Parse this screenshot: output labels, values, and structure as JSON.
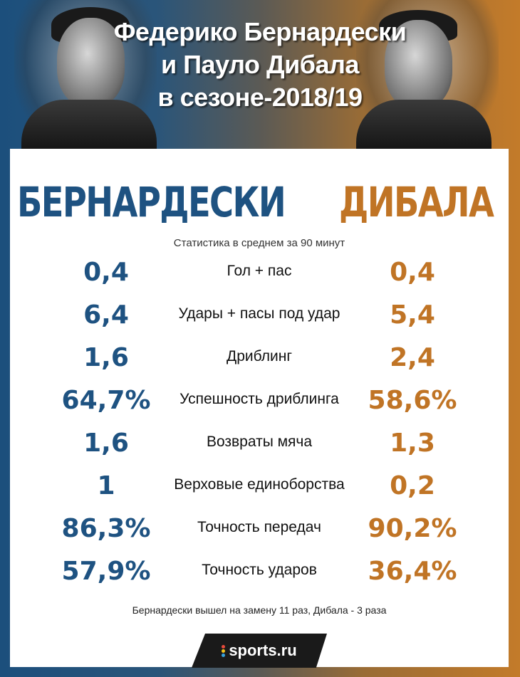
{
  "header": {
    "title_lines": [
      "Федерико Бернардески",
      "и Пауло Дибала",
      "в сезоне-2018/19"
    ]
  },
  "players": {
    "left": {
      "name": "БЕРНАРДЕСКИ",
      "color": "#1e5281"
    },
    "right": {
      "name": "ДИБАЛА",
      "color": "#c07425"
    }
  },
  "subtitle": "Статистика в среднем за 90 минут",
  "stats": [
    {
      "label": "Гол + пас",
      "left": "0,4",
      "right": "0,4"
    },
    {
      "label": "Удары + пасы под удар",
      "left": "6,4",
      "right": "5,4"
    },
    {
      "label": "Дриблинг",
      "left": "1,6",
      "right": "2,4"
    },
    {
      "label": "Успешность дриблинга",
      "left": "64,7%",
      "right": "58,6%"
    },
    {
      "label": "Возвраты мяча",
      "left": "1,6",
      "right": "1,3"
    },
    {
      "label": "Верховые единоборства",
      "left": "1",
      "right": "0,2"
    },
    {
      "label": "Точность передач",
      "left": "86,3%",
      "right": "90,2%"
    },
    {
      "label": "Точность ударов",
      "left": "57,9%",
      "right": "36,4%"
    }
  ],
  "footnote": "Бернардески вышел на замену 11 раз, Дибала - 3 раза",
  "logo": {
    "text": "sports.ru",
    "dot_colors": [
      "#e84b3c",
      "#f2c21b",
      "#38a3dc"
    ]
  }
}
